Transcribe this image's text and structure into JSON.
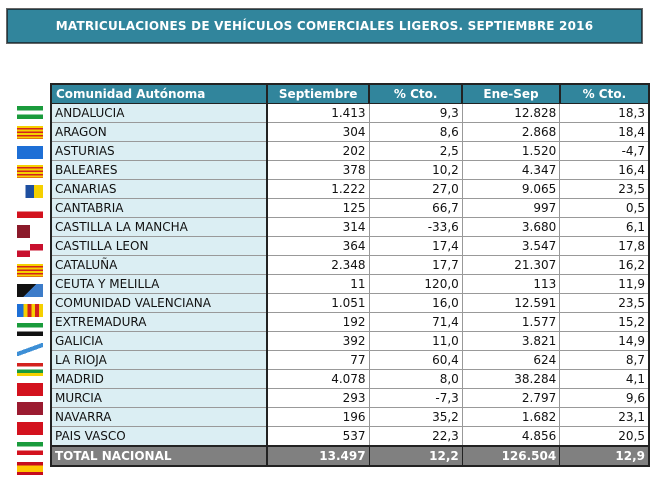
{
  "title": "MATRICULACIONES DE VEHÍCULOS COMERCIALES LIGEROS. SEPTIEMBRE 2016",
  "headers": [
    "Comunidad Autónoma",
    "Septiembre",
    "% Cto.",
    "Ene-Sep",
    "% Cto."
  ],
  "rows": [
    [
      "ANDALUCIA",
      "1.413",
      "9,3",
      "12.828",
      "18,3"
    ],
    [
      "ARAGON",
      "304",
      "8,6",
      "2.868",
      "18,4"
    ],
    [
      "ASTURIAS",
      "202",
      "2,5",
      "1.520",
      "-4,7"
    ],
    [
      "BALEARES",
      "378",
      "10,2",
      "4.347",
      "16,4"
    ],
    [
      "CANARIAS",
      "1.222",
      "27,0",
      "9.065",
      "23,5"
    ],
    [
      "CANTABRIA",
      "125",
      "66,7",
      "997",
      "0,5"
    ],
    [
      "CASTILLA LA MANCHA",
      "314",
      "-33,6",
      "3.680",
      "6,1"
    ],
    [
      "CASTILLA LEON",
      "364",
      "17,4",
      "3.547",
      "17,8"
    ],
    [
      "CATALUÑA",
      "2.348",
      "17,7",
      "21.307",
      "16,2"
    ],
    [
      "CEUTA Y MELILLA",
      "11",
      "120,0",
      "113",
      "11,9"
    ],
    [
      "COMUNIDAD VALENCIANA",
      "1.051",
      "16,0",
      "12.591",
      "23,5"
    ],
    [
      "EXTREMADURA",
      "192",
      "71,4",
      "1.577",
      "15,2"
    ],
    [
      "GALICIA",
      "392",
      "11,0",
      "3.821",
      "14,9"
    ],
    [
      "LA RIOJA",
      "77",
      "60,4",
      "624",
      "8,7"
    ],
    [
      "MADRID",
      "4.078",
      "8,0",
      "38.284",
      "4,1"
    ],
    [
      "MURCIA",
      "293",
      "-7,3",
      "2.797",
      "9,6"
    ],
    [
      "NAVARRA",
      "196",
      "35,2",
      "1.682",
      "23,1"
    ],
    [
      "PAIS VASCO",
      "537",
      "22,3",
      "4.856",
      "20,5"
    ]
  ],
  "total": [
    "TOTAL NACIONAL",
    "13.497",
    "12,2",
    "126.504",
    "12,9"
  ],
  "flags": [
    "linear-gradient(#1a9b3c 0 33%,#fff 33% 66%,#1a9b3c 66%)",
    "repeating-linear-gradient(#f5d000 0 2px,#d3221e 2px 3.5px)",
    "linear-gradient(#1e6fd6,#1e6fd6)",
    "repeating-linear-gradient(#f5d000 0 2px,#d3221e 2px 3.5px)",
    "linear-gradient(90deg,#fff 0 33%,#1e4fa0 33% 66%,#f5d000 66%)",
    "linear-gradient(#fff 0 50%,#d3121e 50%)",
    "linear-gradient(90deg,#8b1a2a 0 50%,#fff 50%)",
    "conic-gradient(#c8102e 0 25%,#fff 25% 50%,#c8102e 50% 75%,#fff 75%)",
    "repeating-linear-gradient(#f5d000 0 2px,#d3221e 2px 3.5px)",
    "linear-gradient(135deg,#111 0 50%,#3d7cc9 50%)",
    "linear-gradient(90deg,#1e6fd6 0 25%,#f5d000 25% 40%,#d3221e 40% 55%,#f5d000 55% 70%,#d3221e 70% 85%,#f5d000 85%)",
    "linear-gradient(#1a9b3c 0 33%,#fff 33% 66%,#111 66%)",
    "linear-gradient(160deg,#fff 0 40%,#3d8fd6 40% 60%,#fff 60%)",
    "linear-gradient(#d3221e 0 25%,#fff 25% 50%,#1a9b3c 50% 75%,#f5d000 75%)",
    "linear-gradient(#d3121e,#d3121e)",
    "linear-gradient(#9b1b30,#9b1b30)",
    "linear-gradient(#d3121e,#d3121e)",
    "linear-gradient(#1a9b3c 0 35%,#fff 35% 65%,#d3121e 65%)",
    "linear-gradient(#c60b1e 0 25%,#ffc400 25% 75%,#c60b1e 75%)"
  ]
}
